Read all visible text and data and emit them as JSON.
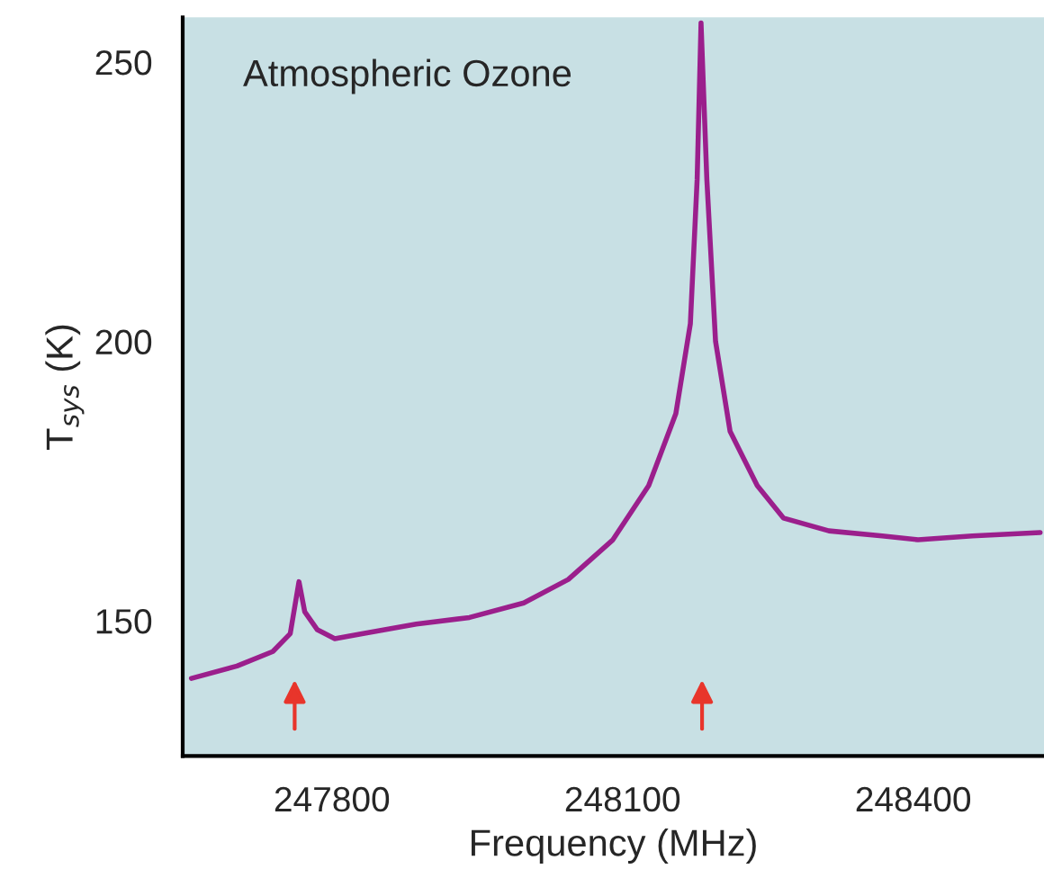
{
  "chart_data": {
    "type": "line",
    "xlabel": "Frequency (MHz)",
    "ylabel": "T$_{sys}$ (K)",
    "annotations": [
      "Atmospheric Ozone"
    ],
    "xlim": [
      247646,
      248535
    ],
    "xticks": [
      247800,
      248100,
      248400
    ],
    "ylim": [
      125.8,
      258
    ],
    "yticks": [
      150,
      200,
      250
    ],
    "grid": false,
    "legend": false,
    "marker": "none",
    "line_style": "solid",
    "series": [
      {
        "color": "#9b1f8c",
        "x": [
          247655,
          247702,
          247739,
          247757,
          247766,
          247772,
          247785,
          247803,
          247831,
          247887,
          247942,
          247998,
          248044,
          248090,
          248127,
          248155,
          248170,
          248177,
          248181,
          248187,
          248196,
          248211,
          248239,
          248266,
          248313,
          248368,
          248405,
          248461,
          248531
        ],
        "values": [
          139.7,
          141.9,
          144.5,
          147.7,
          157,
          151.6,
          148.4,
          146.8,
          147.7,
          149.4,
          150.6,
          153.2,
          157.4,
          164.5,
          174.2,
          187.1,
          203.2,
          229,
          257,
          229,
          200,
          183.9,
          174.2,
          168.4,
          166.1,
          165.2,
          164.5,
          165.2,
          165.8
        ]
      }
    ]
  }
}
